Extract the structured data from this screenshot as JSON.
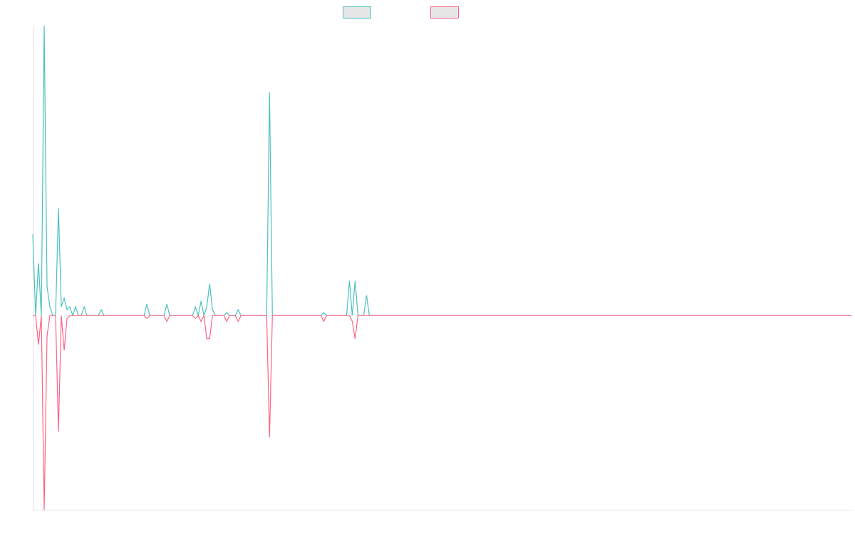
{
  "chart_data": {
    "type": "line",
    "x": [
      0,
      1,
      2,
      3,
      4,
      5,
      6,
      7,
      8,
      9,
      10,
      11,
      12,
      13,
      14,
      15,
      16,
      17,
      18,
      19,
      23,
      24,
      25,
      39,
      40,
      41,
      46,
      47,
      48,
      56,
      57,
      58,
      59,
      60,
      61,
      62,
      63,
      64,
      67,
      68,
      69,
      71,
      72,
      73,
      82,
      83,
      84,
      101,
      102,
      103,
      110,
      111,
      112,
      113,
      114,
      116,
      117,
      118,
      287
    ],
    "xlim": [
      0,
      287
    ],
    "ylim": [
      -67,
      100
    ],
    "series": [
      {
        "color": "#4bc0c0",
        "values": [
          28,
          0,
          18,
          0,
          100,
          10,
          3,
          0,
          0,
          37,
          3,
          6,
          2,
          3,
          0,
          3,
          0,
          0,
          3,
          0,
          0,
          2,
          0,
          0,
          4,
          0,
          0,
          4,
          0,
          0,
          3,
          0,
          5,
          0,
          3,
          11,
          2,
          0,
          0,
          1,
          0,
          0,
          2,
          0,
          0,
          77,
          0,
          0,
          1,
          0,
          0,
          12,
          0,
          12,
          0,
          0,
          7,
          0,
          0
        ]
      },
      {
        "color": "#ff6384",
        "values": [
          0,
          0,
          -10,
          0,
          -67,
          -7,
          0,
          0,
          0,
          -40,
          0,
          -12,
          -1,
          0,
          0,
          0,
          0,
          0,
          0,
          0,
          0,
          0,
          0,
          0,
          -1,
          0,
          0,
          -2,
          0,
          0,
          -1,
          0,
          -2,
          0,
          -8,
          -8,
          0,
          0,
          0,
          -2,
          0,
          0,
          -2,
          0,
          0,
          -42,
          0,
          0,
          -2,
          0,
          0,
          0,
          -2,
          -8,
          0,
          0,
          0,
          0,
          0
        ]
      }
    ]
  }
}
